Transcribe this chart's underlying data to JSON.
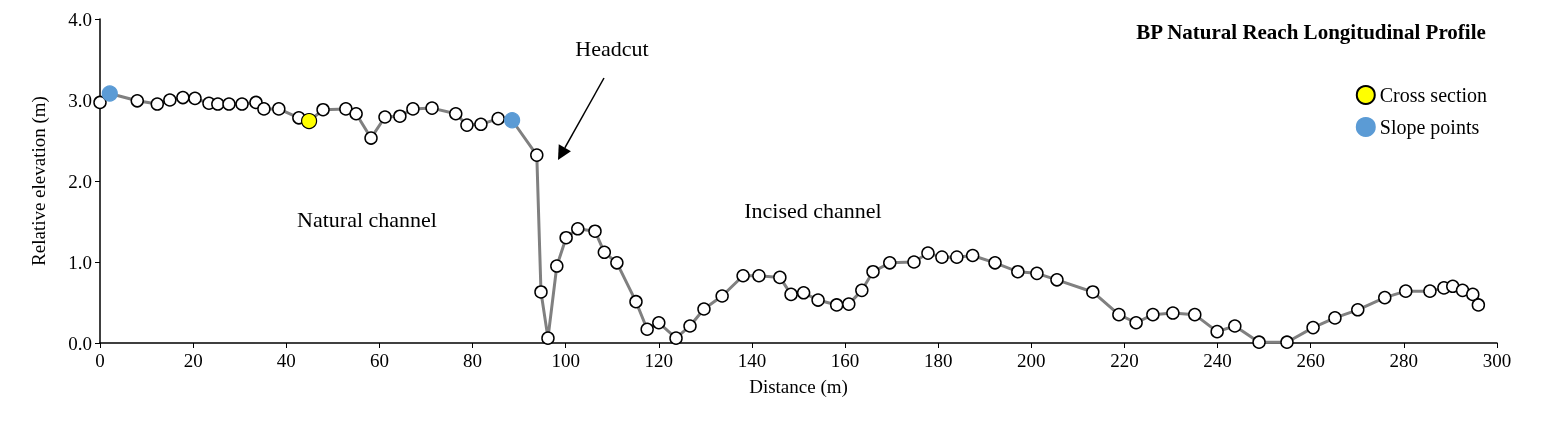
{
  "chart_data": {
    "type": "line",
    "title": "BP Natural Reach Longitudinal Profile",
    "xlabel": "Distance (m)",
    "ylabel": "Relative elevation (m)",
    "xlim": [
      0,
      300
    ],
    "xticks": [
      0,
      20,
      40,
      60,
      80,
      100,
      120,
      140,
      160,
      180,
      200,
      220,
      240,
      260,
      280,
      300
    ],
    "ylim": [
      0,
      4
    ],
    "yticks": [
      {
        "value": 0,
        "label": "0.0"
      },
      {
        "value": 1,
        "label": "1.0"
      },
      {
        "value": 2,
        "label": "2.0"
      },
      {
        "value": 3,
        "label": "3.0"
      },
      {
        "value": 4,
        "label": "4.0"
      }
    ],
    "grid": false,
    "legend": "top right",
    "marker": "circle",
    "line_style": "solid",
    "annotations": [
      "Headcut",
      "Natural channel",
      "Incised channel"
    ],
    "series": [
      {
        "color": "#808080",
        "x": [
          0,
          2.1,
          8,
          12.3,
          15,
          17.8,
          20.4,
          23.4,
          25.3,
          27.7,
          30.5,
          33.5,
          35.2,
          38.4,
          42.7,
          44.9,
          47.9,
          52.8,
          55,
          58.2,
          61.2,
          64.4,
          67.2,
          71.3,
          76.4,
          78.8,
          81.8,
          85.5,
          88.5,
          93.8,
          94.7,
          96.2,
          98.1,
          100.1,
          102.6,
          106.3,
          108.3,
          111,
          115.1,
          117.5,
          120,
          123.7,
          126.7,
          129.7,
          133.6,
          138.1,
          141.5,
          146,
          148.4,
          151.1,
          154.2,
          158.2,
          160.8,
          163.6,
          166,
          169.6,
          174.8,
          177.8,
          180.8,
          184,
          187.4,
          192.2,
          197.1,
          201.2,
          205.5,
          213.2,
          218.8,
          222.5,
          226.1,
          230.4,
          235.1,
          239.9,
          243.7,
          248.9,
          254.9,
          260.5,
          265.2,
          270.1,
          275.9,
          280.4,
          285.6,
          288.6,
          290.5,
          292.6,
          294.8,
          296
        ],
        "values": [
          2.97,
          3.08,
          2.99,
          2.95,
          3.0,
          3.03,
          3.02,
          2.96,
          2.95,
          2.95,
          2.95,
          2.97,
          2.89,
          2.89,
          2.78,
          2.74,
          2.88,
          2.89,
          2.83,
          2.53,
          2.79,
          2.8,
          2.89,
          2.9,
          2.83,
          2.69,
          2.7,
          2.77,
          2.75,
          2.32,
          0.63,
          0.06,
          0.95,
          1.3,
          1.41,
          1.38,
          1.12,
          0.99,
          0.51,
          0.17,
          0.25,
          0.06,
          0.21,
          0.42,
          0.58,
          0.83,
          0.83,
          0.81,
          0.6,
          0.62,
          0.53,
          0.47,
          0.48,
          0.65,
          0.88,
          0.99,
          1.0,
          1.11,
          1.06,
          1.06,
          1.08,
          0.99,
          0.88,
          0.86,
          0.78,
          0.63,
          0.35,
          0.25,
          0.35,
          0.37,
          0.35,
          0.14,
          0.21,
          0.01,
          0.01,
          0.19,
          0.31,
          0.41,
          0.56,
          0.64,
          0.64,
          0.68,
          0.7,
          0.65,
          0.6,
          0.47
        ]
      },
      {
        "name": "Cross section",
        "type": "scatter",
        "color": "#ffff00",
        "x": [
          44.9
        ],
        "values": [
          2.74
        ]
      },
      {
        "name": "Slope points",
        "type": "scatter",
        "color": "#5b9bd5",
        "x": [
          2.1,
          88.5
        ],
        "values": [
          3.08,
          2.75
        ]
      }
    ]
  }
}
